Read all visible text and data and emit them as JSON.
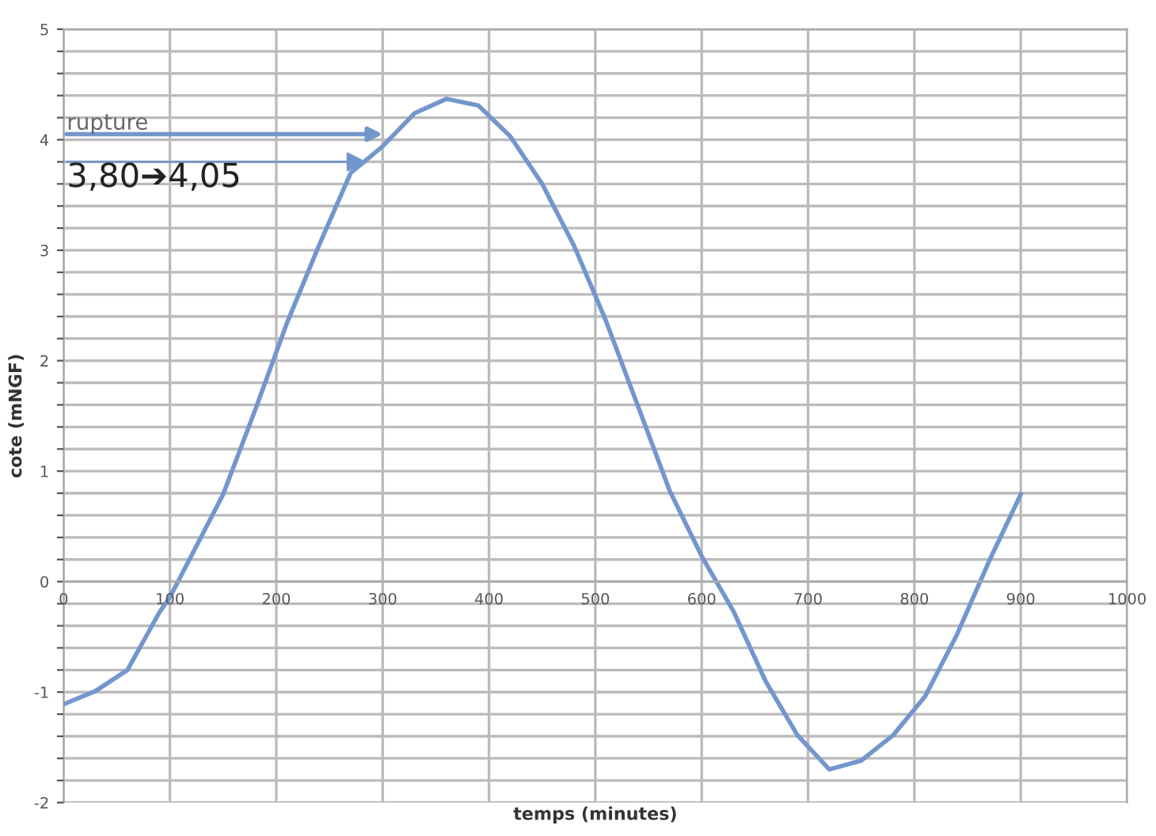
{
  "chart_data": {
    "type": "line",
    "xlabel": "temps (minutes)",
    "ylabel": "cote (mNGF)",
    "x": [
      0,
      30,
      60,
      90,
      100,
      120,
      150,
      180,
      210,
      240,
      270,
      300,
      330,
      360,
      390,
      420,
      450,
      480,
      510,
      540,
      570,
      600,
      630,
      660,
      690,
      720,
      750,
      780,
      810,
      840,
      870,
      900
    ],
    "series": [
      {
        "color": "#7396cc",
        "values": [
          -1.11,
          -0.99,
          -0.8,
          -0.28,
          -0.14,
          0.23,
          0.79,
          1.55,
          2.34,
          3.04,
          3.7,
          3.94,
          4.24,
          4.37,
          4.31,
          4.03,
          3.6,
          3.04,
          2.36,
          1.59,
          0.82,
          0.23,
          -0.27,
          -0.9,
          -1.39,
          -1.7,
          -1.62,
          -1.39,
          -1.04,
          -0.48,
          0.18,
          0.79
        ]
      }
    ],
    "xlim": [
      0,
      1000
    ],
    "ylim": [
      -2,
      5
    ],
    "xticks": [
      0,
      100,
      200,
      300,
      400,
      500,
      600,
      700,
      800,
      900,
      1000
    ],
    "yticks": [
      -2,
      {
        "value": -1.8,
        "label": null
      },
      {
        "value": -1.6,
        "label": null
      },
      {
        "value": -1.4,
        "label": null
      },
      {
        "value": -1.2,
        "label": null
      },
      -1,
      {
        "value": -0.8,
        "label": null
      },
      {
        "value": -0.6,
        "label": null
      },
      {
        "value": -0.4,
        "label": null
      },
      {
        "value": -0.2,
        "label": null
      },
      0,
      {
        "value": 0.2,
        "label": null
      },
      {
        "value": 0.4,
        "label": null
      },
      {
        "value": 0.6,
        "label": null
      },
      {
        "value": 0.8,
        "label": null
      },
      1,
      {
        "value": 1.2,
        "label": null
      },
      {
        "value": 1.4,
        "label": null
      },
      {
        "value": 1.6,
        "label": null
      },
      {
        "value": 1.8,
        "label": null
      },
      2,
      {
        "value": 2.2,
        "label": null
      },
      {
        "value": 2.4,
        "label": null
      },
      {
        "value": 2.6,
        "label": null
      },
      {
        "value": 2.8,
        "label": null
      },
      3,
      {
        "value": 3.2,
        "label": null
      },
      {
        "value": 3.4,
        "label": null
      },
      {
        "value": 3.6,
        "label": null
      },
      {
        "value": 3.8,
        "label": null
      },
      4,
      {
        "value": 4.2,
        "label": null
      },
      {
        "value": 4.4,
        "label": null
      },
      {
        "value": 4.6,
        "label": null
      },
      {
        "value": 4.8,
        "label": null
      },
      5
    ],
    "grid": true,
    "marker": "none",
    "line_style": "solid",
    "annotations": [
      {
        "text": "rupture",
        "x": 300,
        "y": 4.05
      },
      {
        "text": "3,80➔4,05",
        "x": 285,
        "y": 3.8
      }
    ]
  }
}
